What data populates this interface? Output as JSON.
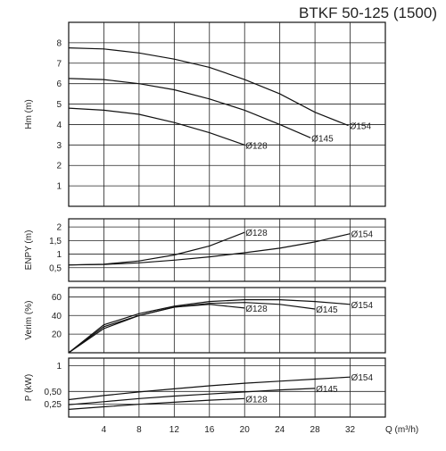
{
  "chart_data": {
    "type": "line",
    "title": "BTKF 50-125 (1500)",
    "xlabel": "Q (m³/h)",
    "x_ticks": [
      "4",
      "8",
      "12",
      "16",
      "20",
      "24",
      "28",
      "32"
    ],
    "xlim": [
      0,
      36
    ],
    "grid": true,
    "panels": [
      {
        "id": "head",
        "ylabel": "Hm (m)",
        "ylim": [
          0,
          9
        ],
        "y_ticks": [
          "1",
          "2",
          "3",
          "4",
          "5",
          "6",
          "7",
          "8"
        ],
        "series": [
          {
            "name": "Ø154",
            "x": [
              0,
              4,
              8,
              12,
              16,
              20,
              24,
              28,
              31.8
            ],
            "y": [
              7.75,
              7.7,
              7.5,
              7.2,
              6.8,
              6.2,
              5.5,
              4.6,
              3.95
            ]
          },
          {
            "name": "Ø145",
            "x": [
              0,
              4,
              8,
              12,
              16,
              20,
              24,
              27.5
            ],
            "y": [
              6.25,
              6.2,
              6.0,
              5.7,
              5.25,
              4.7,
              4.0,
              3.35
            ]
          },
          {
            "name": "Ø128",
            "x": [
              0,
              4,
              8,
              12,
              16,
              20
            ],
            "y": [
              4.8,
              4.7,
              4.5,
              4.1,
              3.6,
              3.0
            ]
          }
        ]
      },
      {
        "id": "npsh",
        "ylabel": "ENPY (m)",
        "ylim": [
          0,
          2.3
        ],
        "y_ticks": [
          "0,5",
          "1",
          "1,5",
          "2"
        ],
        "series": [
          {
            "name": "Ø154",
            "x": [
              0,
              4,
              8,
              12,
              16,
              20,
              24,
              28,
              32
            ],
            "y": [
              0.6,
              0.62,
              0.68,
              0.78,
              0.9,
              1.05,
              1.22,
              1.45,
              1.75
            ]
          },
          {
            "name": "Ø128",
            "x": [
              0,
              4,
              8,
              12,
              16,
              20
            ],
            "y": [
              0.6,
              0.63,
              0.75,
              0.97,
              1.3,
              1.8
            ]
          }
        ]
      },
      {
        "id": "efficiency",
        "ylabel": "Verim (%)",
        "ylim": [
          0,
          70
        ],
        "y_ticks": [
          "20",
          "40",
          "60"
        ],
        "series": [
          {
            "name": "Ø154",
            "x": [
              0,
              4,
              8,
              12,
              16,
              20,
              24,
              28,
              32
            ],
            "y": [
              0,
              30,
              42,
              50,
              55,
              57,
              57,
              55,
              52
            ]
          },
          {
            "name": "Ø145",
            "x": [
              0,
              4,
              8,
              12,
              16,
              20,
              24,
              28
            ],
            "y": [
              0,
              28,
              40,
              49,
              53,
              54,
              52,
              47
            ]
          },
          {
            "name": "Ø128",
            "x": [
              0,
              4,
              8,
              12,
              16,
              20
            ],
            "y": [
              0,
              26,
              40,
              49,
              52,
              48
            ]
          }
        ]
      },
      {
        "id": "power",
        "ylabel": "P (kW)",
        "ylim": [
          0,
          1.15
        ],
        "y_ticks": [
          "0,25",
          "0,50",
          "1"
        ],
        "series": [
          {
            "name": "Ø154",
            "x": [
              0,
              4,
              8,
              12,
              16,
              20,
              24,
              28,
              32
            ],
            "y": [
              0.34,
              0.42,
              0.49,
              0.55,
              0.61,
              0.66,
              0.7,
              0.74,
              0.78
            ]
          },
          {
            "name": "Ø145",
            "x": [
              0,
              4,
              8,
              12,
              16,
              20,
              24,
              28
            ],
            "y": [
              0.24,
              0.3,
              0.36,
              0.41,
              0.45,
              0.49,
              0.53,
              0.56
            ]
          },
          {
            "name": "Ø128",
            "x": [
              0,
              4,
              8,
              12,
              16,
              20
            ],
            "y": [
              0.15,
              0.2,
              0.25,
              0.29,
              0.33,
              0.36
            ]
          }
        ]
      }
    ]
  }
}
